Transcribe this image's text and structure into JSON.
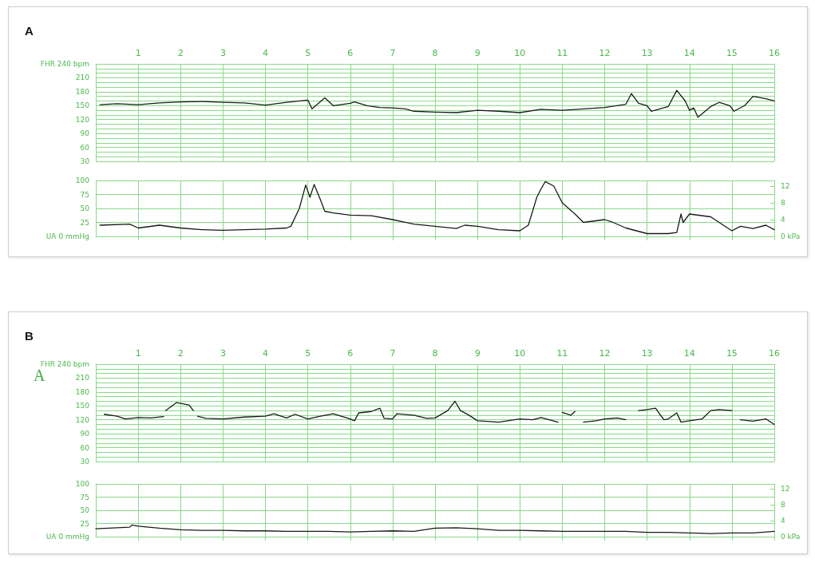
{
  "chart_data": [
    {
      "type": "line",
      "title": "A",
      "xlim": [
        0,
        16
      ],
      "xticks": [
        1,
        2,
        3,
        4,
        5,
        6,
        7,
        8,
        9,
        10,
        11,
        12,
        13,
        14,
        15,
        16
      ],
      "ylim": [
        30,
        240
      ],
      "yticks": [
        30,
        {
          "value": 40,
          "label": null
        },
        {
          "value": 50,
          "label": null
        },
        60,
        {
          "value": 70,
          "label": null
        },
        {
          "value": 80,
          "label": null
        },
        90,
        {
          "value": 100,
          "label": null
        },
        {
          "value": 110,
          "label": null
        },
        120,
        {
          "value": 130,
          "label": null
        },
        {
          "value": 140,
          "label": null
        },
        150,
        {
          "value": 160,
          "label": null
        },
        {
          "value": 170,
          "label": null
        },
        180,
        {
          "value": 190,
          "label": null
        },
        {
          "value": 200,
          "label": null
        },
        210,
        {
          "value": 220,
          "label": null
        },
        {
          "value": 230,
          "label": null
        },
        {
          "value": 240,
          "label": "FHR 240 bpm"
        }
      ],
      "grid": true,
      "marker": "none",
      "line_style": "solid",
      "series": [
        {
          "color": "#1a1a1a",
          "x": [
            0.1,
            0.5,
            1,
            1.5,
            2,
            2.5,
            3,
            3.5,
            4,
            4.5,
            5,
            5.1,
            5.4,
            5.6,
            6,
            6.1,
            6.4,
            6.7,
            7,
            7.3,
            7.5,
            8,
            8.5,
            9,
            9.5,
            10,
            10.5,
            11,
            11.5,
            12,
            12.5,
            12.63,
            12.8,
            13,
            13.1,
            13.5,
            13.7,
            13.9,
            14,
            14.1,
            14.2,
            14.5,
            14.7,
            14.95,
            15.05,
            15.3,
            15.5,
            15.8,
            16
          ],
          "values": [
            152,
            154,
            152,
            156,
            158,
            159,
            157,
            156,
            151,
            157,
            162,
            143,
            167,
            150,
            155,
            158,
            150,
            146,
            145,
            143,
            138,
            136,
            135,
            140,
            138,
            135,
            142,
            140,
            143,
            146,
            153,
            176,
            155,
            150,
            138,
            148,
            183,
            160,
            140,
            145,
            125,
            148,
            157,
            150,
            138,
            150,
            170,
            165,
            160
          ]
        }
      ]
    },
    {
      "type": "line",
      "xlim": [
        0,
        16
      ],
      "xticks": [
        1,
        2,
        3,
        4,
        5,
        6,
        7,
        8,
        9,
        10,
        11,
        12,
        13,
        14,
        15,
        16
      ],
      "ylim": [
        0,
        100
      ],
      "yticks": [
        {
          "value": 0,
          "label": "UA 0 mmHg"
        },
        25,
        50,
        75,
        100
      ],
      "y2lim": [
        0,
        13.3
      ],
      "y2ticks": [
        {
          "value": 0,
          "label": "0 kPa"
        },
        4,
        8,
        12
      ],
      "tick_labels": "y",
      "grid": true,
      "marker": "none",
      "line_style": "solid",
      "series": [
        {
          "color": "#1a1a1a",
          "x": [
            0.1,
            0.8,
            1,
            1.5,
            2,
            2.5,
            3,
            3.5,
            4,
            4.5,
            4.6,
            4.8,
            4.95,
            5.05,
            5.15,
            5.3,
            5.4,
            5.6,
            6,
            6.5,
            7,
            7.5,
            8,
            8.5,
            8.7,
            9,
            9.5,
            10,
            10.2,
            10.4,
            10.5,
            10.6,
            10.8,
            11,
            11.3,
            11.5,
            12,
            12.2,
            12.5,
            13,
            13.5,
            13.7,
            13.8,
            13.85,
            14,
            14.5,
            14.8,
            15,
            15.2,
            15.5,
            15.8,
            16
          ],
          "values": [
            20,
            22,
            15,
            20,
            15,
            12,
            11,
            12,
            13,
            15,
            18,
            50,
            92,
            70,
            93,
            65,
            45,
            42,
            38,
            37,
            30,
            22,
            18,
            14,
            20,
            18,
            12,
            10,
            20,
            70,
            85,
            98,
            90,
            60,
            40,
            25,
            30,
            25,
            15,
            5,
            5,
            7,
            40,
            25,
            40,
            35,
            20,
            10,
            18,
            14,
            20,
            12
          ]
        }
      ]
    },
    {
      "type": "line",
      "title": "B",
      "annotations": [
        "A"
      ],
      "xlim": [
        0,
        16
      ],
      "xticks": [
        1,
        2,
        3,
        4,
        5,
        6,
        7,
        8,
        9,
        10,
        11,
        12,
        13,
        14,
        15,
        16
      ],
      "ylim": [
        30,
        240
      ],
      "yticks": [
        30,
        {
          "value": 40,
          "label": null
        },
        {
          "value": 50,
          "label": null
        },
        60,
        {
          "value": 70,
          "label": null
        },
        {
          "value": 80,
          "label": null
        },
        90,
        {
          "value": 100,
          "label": null
        },
        {
          "value": 110,
          "label": null
        },
        120,
        {
          "value": 130,
          "label": null
        },
        {
          "value": 140,
          "label": null
        },
        150,
        {
          "value": 160,
          "label": null
        },
        {
          "value": 170,
          "label": null
        },
        180,
        {
          "value": 190,
          "label": null
        },
        {
          "value": 200,
          "label": null
        },
        210,
        {
          "value": 220,
          "label": null
        },
        {
          "value": 230,
          "label": null
        },
        {
          "value": 240,
          "label": "FHR 240 bpm"
        }
      ],
      "grid": true,
      "marker": "none",
      "line_style": "solid",
      "series": [
        {
          "color": "#1a1a1a",
          "x": [
            0.2,
            0.5,
            0.7,
            1,
            1.3,
            1.6,
            1.62,
            1.65,
            1.9,
            2.2,
            2.3,
            2.35,
            2.4,
            2.6,
            3,
            3.5,
            4,
            4.2,
            4.5,
            4.7,
            5,
            5.3,
            5.6,
            6,
            6.1,
            6.2,
            6.5,
            6.7,
            6.8,
            7,
            7.1,
            7.5,
            7.8,
            8,
            8.3,
            8.47,
            8.6,
            8.8,
            9,
            9.5,
            10,
            10.3,
            10.5,
            10.9,
            10.95,
            11,
            11.2,
            11.3,
            11.4,
            11.5,
            11.8,
            12,
            12.3,
            12.5,
            12.7,
            12.75,
            12.8,
            13,
            13.2,
            13.3,
            13.4,
            13.5,
            13.7,
            13.8,
            14,
            14.3,
            14.5,
            14.7,
            15,
            15.1,
            15.2,
            15.5,
            15.8,
            16
          ],
          "values": [
            132,
            128,
            122,
            125,
            124,
            127,
            null,
            140,
            157,
            152,
            140,
            null,
            128,
            123,
            122,
            126,
            128,
            133,
            124,
            132,
            122,
            128,
            133,
            122,
            118,
            135,
            138,
            145,
            123,
            122,
            133,
            130,
            123,
            124,
            140,
            160,
            140,
            130,
            118,
            115,
            122,
            120,
            125,
            115,
            null,
            136,
            130,
            138,
            null,
            115,
            118,
            122,
            124,
            120,
            null,
            null,
            140,
            142,
            145,
            132,
            120,
            122,
            135,
            115,
            118,
            122,
            140,
            142,
            140,
            null,
            120,
            117,
            122,
            110
          ]
        }
      ]
    },
    {
      "type": "line",
      "xlim": [
        0,
        16
      ],
      "xticks": [
        1,
        2,
        3,
        4,
        5,
        6,
        7,
        8,
        9,
        10,
        11,
        12,
        13,
        14,
        15,
        16
      ],
      "ylim": [
        0,
        100
      ],
      "yticks": [
        {
          "value": 0,
          "label": "UA 0 mmHg"
        },
        25,
        50,
        75,
        100
      ],
      "y2lim": [
        0,
        13.3
      ],
      "y2ticks": [
        {
          "value": 0,
          "label": "0 kPa"
        },
        4,
        8,
        12
      ],
      "tick_labels": "y",
      "grid": true,
      "marker": "none",
      "line_style": "solid",
      "series": [
        {
          "color": "#1a1a1a",
          "x": [
            0,
            0.8,
            0.85,
            1,
            1.5,
            2,
            2.5,
            3,
            3.5,
            4,
            4.5,
            5,
            5.5,
            6,
            6.5,
            7,
            7.5,
            8,
            8.5,
            9,
            9.5,
            10,
            10.5,
            11,
            11.5,
            12,
            12.5,
            13,
            13.5,
            14,
            14.5,
            15,
            15.5,
            16
          ],
          "values": [
            15,
            18,
            22,
            20,
            16,
            13,
            12,
            12,
            11,
            11,
            10,
            10,
            10,
            9,
            10,
            11,
            10,
            16,
            17,
            15,
            12,
            12,
            11,
            10,
            10,
            10,
            10,
            8,
            8,
            7,
            6,
            7,
            7,
            10
          ]
        }
      ]
    }
  ]
}
